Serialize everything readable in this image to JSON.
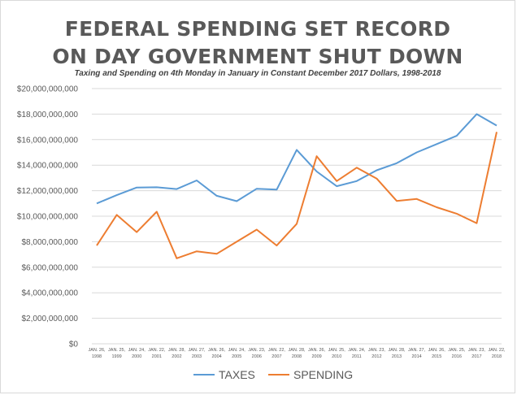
{
  "chart_data": {
    "type": "line",
    "title_line1": "FEDERAL SPENDING SET RECORD",
    "title_line2": "ON DAY GOVERNMENT SHUT DOWN",
    "subtitle": "Taxing and Spending on 4th Monday in January in Constant December 2017 Dollars, 1998-2018",
    "xlabel": "",
    "ylabel": "",
    "ylim": [
      0,
      20000000000
    ],
    "y_ticks": [
      {
        "value": 0,
        "label": "$0"
      },
      {
        "value": 2000000000,
        "label": "$2,000,000,000"
      },
      {
        "value": 4000000000,
        "label": "$4,000,000,000"
      },
      {
        "value": 6000000000,
        "label": "$6,000,000,000"
      },
      {
        "value": 8000000000,
        "label": "$8,000,000,000"
      },
      {
        "value": 10000000000,
        "label": "$10,000,000,000"
      },
      {
        "value": 12000000000,
        "label": "$12,000,000,000"
      },
      {
        "value": 14000000000,
        "label": "$14,000,000,000"
      },
      {
        "value": 16000000000,
        "label": "$16,000,000,000"
      },
      {
        "value": 18000000000,
        "label": "$18,000,000,000"
      },
      {
        "value": 20000000000,
        "label": "$20,000,000,000"
      }
    ],
    "categories": [
      {
        "date": "JAN. 26,",
        "year": "1998"
      },
      {
        "date": "JAN. 25,",
        "year": "1999"
      },
      {
        "date": "JAN. 24,",
        "year": "2000"
      },
      {
        "date": "JAN. 22,",
        "year": "2001"
      },
      {
        "date": "JAN. 28,",
        "year": "2002"
      },
      {
        "date": "JAN. 27,",
        "year": "2003"
      },
      {
        "date": "JAN. 26,",
        "year": "2004"
      },
      {
        "date": "JAN. 24,",
        "year": "2005"
      },
      {
        "date": "JAN. 23,",
        "year": "2006"
      },
      {
        "date": "JAN. 22,",
        "year": "2007"
      },
      {
        "date": "JAN. 28,",
        "year": "2008"
      },
      {
        "date": "JAN. 26,",
        "year": "2009"
      },
      {
        "date": "JAN. 25,",
        "year": "2010"
      },
      {
        "date": "JAN. 24,",
        "year": "2011"
      },
      {
        "date": "JAN. 23,",
        "year": "2012"
      },
      {
        "date": "JAN. 28,",
        "year": "2013"
      },
      {
        "date": "JAN. 27,",
        "year": "2014"
      },
      {
        "date": "JAN. 26,",
        "year": "2015"
      },
      {
        "date": "JAN. 25,",
        "year": "2016"
      },
      {
        "date": "JAN. 23,",
        "year": "2017"
      },
      {
        "date": "JAN. 22,",
        "year": "2018"
      }
    ],
    "series": [
      {
        "name": "TAXES",
        "color": "#5b9bd5",
        "values": [
          11000000000,
          11650000000,
          12250000000,
          12270000000,
          12130000000,
          12800000000,
          11600000000,
          11180000000,
          12150000000,
          12080000000,
          15200000000,
          13500000000,
          12350000000,
          12750000000,
          13600000000,
          14150000000,
          15000000000,
          15650000000,
          16300000000,
          18000000000,
          17100000000
        ]
      },
      {
        "name": "SPENDING",
        "color": "#ed7d31",
        "values": [
          7700000000,
          10100000000,
          8750000000,
          10350000000,
          6700000000,
          7250000000,
          7050000000,
          8000000000,
          8950000000,
          7700000000,
          9400000000,
          14700000000,
          12750000000,
          13800000000,
          12950000000,
          11200000000,
          11350000000,
          10700000000,
          10200000000,
          9450000000,
          16600000000
        ]
      }
    ],
    "grid": true,
    "legend": "bottom"
  }
}
